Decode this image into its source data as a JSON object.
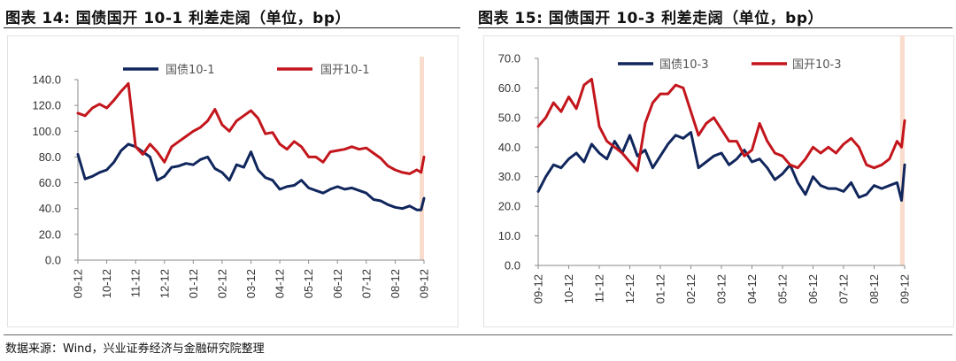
{
  "source": "数据来源：Wind，兴业证券经济与金融研究院整理",
  "chart_data": [
    {
      "type": "line",
      "title": "图表 14:  国债国开 10-1 利差走阔（单位，bp）",
      "xlabel": "",
      "ylabel": "",
      "x_tick_labels": [
        "09-12",
        "10-12",
        "11-12",
        "12-12",
        "01-12",
        "02-12",
        "03-12",
        "04-12",
        "05-12",
        "06-12",
        "07-12",
        "08-12",
        "09-12"
      ],
      "ylim": [
        0,
        140
      ],
      "y_ticks": [
        0,
        20,
        40,
        60,
        80,
        100,
        120,
        140
      ],
      "y_tick_labels": [
        "0.0",
        "20.0",
        "40.0",
        "60.0",
        "80.0",
        "100.0",
        "120.0",
        "140.0"
      ],
      "grid": false,
      "legend_position": "top",
      "highlight_band": {
        "from_period": 11.85,
        "to_period": 12.0,
        "color": "#f8dccd"
      },
      "colors": {
        "国债10-1": "#10265c",
        "国开10-1": "#c3161c"
      },
      "series": [
        {
          "name": "国债10-1",
          "x": [
            0,
            0.25,
            0.5,
            0.75,
            1,
            1.25,
            1.5,
            1.75,
            2,
            2.25,
            2.5,
            2.75,
            3,
            3.25,
            3.5,
            3.75,
            4,
            4.25,
            4.5,
            4.75,
            5,
            5.25,
            5.5,
            5.75,
            6,
            6.25,
            6.5,
            6.75,
            7,
            7.25,
            7.5,
            7.75,
            8,
            8.25,
            8.5,
            8.75,
            9,
            9.25,
            9.5,
            9.75,
            10,
            10.25,
            10.5,
            10.75,
            11,
            11.25,
            11.5,
            11.75,
            11.9,
            12
          ],
          "values": [
            82,
            63,
            65,
            68,
            70,
            76,
            85,
            90,
            88,
            84,
            80,
            62,
            65,
            72,
            73,
            75,
            74,
            78,
            80,
            71,
            68,
            62,
            74,
            72,
            84,
            70,
            64,
            62,
            55,
            57,
            58,
            62,
            56,
            54,
            52,
            55,
            57,
            55,
            56,
            54,
            52,
            47,
            46,
            43,
            41,
            40,
            42,
            39,
            39,
            48
          ]
        },
        {
          "name": "国开10-1",
          "x": [
            0,
            0.25,
            0.5,
            0.75,
            1,
            1.25,
            1.5,
            1.75,
            2,
            2.25,
            2.5,
            2.75,
            3,
            3.25,
            3.5,
            3.75,
            4,
            4.25,
            4.5,
            4.75,
            5,
            5.25,
            5.5,
            5.75,
            6,
            6.25,
            6.5,
            6.75,
            7,
            7.25,
            7.5,
            7.75,
            8,
            8.25,
            8.5,
            8.75,
            9,
            9.25,
            9.5,
            9.75,
            10,
            10.25,
            10.5,
            10.75,
            11,
            11.25,
            11.5,
            11.75,
            11.9,
            12
          ],
          "values": [
            114,
            112,
            118,
            121,
            118,
            124,
            131,
            137,
            88,
            82,
            90,
            84,
            76,
            88,
            92,
            96,
            100,
            103,
            108,
            117,
            105,
            100,
            108,
            112,
            116,
            110,
            98,
            99,
            90,
            86,
            92,
            88,
            80,
            80,
            76,
            84,
            85,
            86,
            88,
            86,
            87,
            83,
            79,
            73,
            70,
            68,
            67,
            70,
            68,
            80
          ]
        }
      ]
    },
    {
      "type": "line",
      "title": "图表 15:  国债国开 10-3 利差走阔（单位，bp）",
      "xlabel": "",
      "ylabel": "",
      "x_tick_labels": [
        "09-12",
        "10-12",
        "11-12",
        "12-12",
        "01-12",
        "02-12",
        "03-12",
        "04-12",
        "05-12",
        "06-12",
        "07-12",
        "08-12",
        "09-12"
      ],
      "ylim": [
        0,
        70
      ],
      "y_ticks": [
        0,
        10,
        20,
        30,
        40,
        50,
        60,
        70
      ],
      "y_tick_labels": [
        "0.0",
        "10.0",
        "20.0",
        "30.0",
        "40.0",
        "50.0",
        "60.0",
        "70.0"
      ],
      "grid": false,
      "legend_position": "top",
      "highlight_band": {
        "from_period": 11.85,
        "to_period": 12.0,
        "color": "#f8dccd"
      },
      "colors": {
        "国债10-3": "#10265c",
        "国开10-3": "#c3161c"
      },
      "series": [
        {
          "name": "国债10-3",
          "x": [
            0,
            0.25,
            0.5,
            0.75,
            1,
            1.25,
            1.5,
            1.75,
            2,
            2.25,
            2.5,
            2.75,
            3,
            3.25,
            3.5,
            3.75,
            4,
            4.25,
            4.5,
            4.75,
            5,
            5.25,
            5.5,
            5.75,
            6,
            6.25,
            6.5,
            6.75,
            7,
            7.25,
            7.5,
            7.75,
            8,
            8.25,
            8.5,
            8.75,
            9,
            9.25,
            9.5,
            9.75,
            10,
            10.25,
            10.5,
            10.75,
            11,
            11.25,
            11.5,
            11.75,
            11.9,
            12
          ],
          "values": [
            25,
            30,
            34,
            33,
            36,
            38,
            35,
            41,
            38,
            36,
            42,
            38,
            44,
            37,
            39,
            33,
            37,
            41,
            44,
            43,
            45,
            33,
            35,
            37,
            38,
            34,
            36,
            39,
            35,
            36,
            33,
            29,
            31,
            34,
            28,
            24,
            30,
            27,
            26,
            26,
            25,
            28,
            23,
            24,
            27,
            26,
            27,
            28,
            22,
            34
          ]
        },
        {
          "name": "国开10-3",
          "x": [
            0,
            0.25,
            0.5,
            0.75,
            1,
            1.25,
            1.5,
            1.75,
            2,
            2.25,
            2.5,
            2.75,
            3,
            3.25,
            3.5,
            3.75,
            4,
            4.25,
            4.5,
            4.75,
            5,
            5.25,
            5.5,
            5.75,
            6,
            6.25,
            6.5,
            6.75,
            7,
            7.25,
            7.5,
            7.75,
            8,
            8.25,
            8.5,
            8.75,
            9,
            9.25,
            9.5,
            9.75,
            10,
            10.25,
            10.5,
            10.75,
            11,
            11.25,
            11.5,
            11.75,
            11.9,
            12
          ],
          "values": [
            47,
            50,
            55,
            52,
            57,
            53,
            61,
            63,
            47,
            42,
            40,
            38,
            35,
            32,
            48,
            55,
            58,
            58,
            61,
            60,
            52,
            44,
            48,
            50,
            46,
            42,
            42,
            37,
            39,
            48,
            42,
            38,
            37,
            34,
            33,
            36,
            40,
            38,
            40,
            38,
            41,
            43,
            40,
            34,
            33,
            34,
            36,
            42,
            40,
            49
          ]
        }
      ]
    }
  ]
}
